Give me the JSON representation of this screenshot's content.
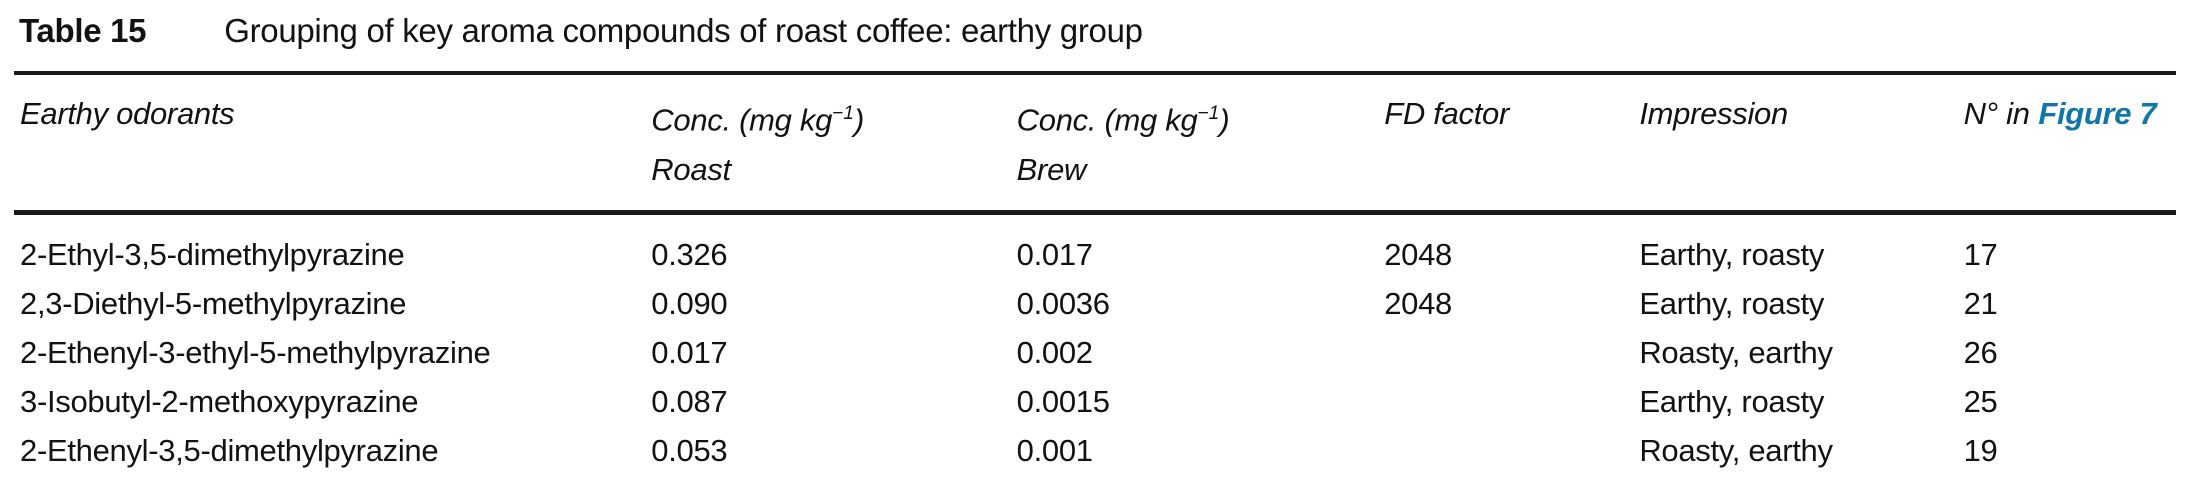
{
  "accent_color": "#0e76a8",
  "caption": {
    "label": "Table 15",
    "text": "Grouping of key aroma compounds of roast coffee: earthy group"
  },
  "header": {
    "odorants": "Earthy odorants",
    "conc_prefix": "Conc. (mg kg",
    "conc_sup": "−1",
    "conc_suffix": ")",
    "roast_sub": "Roast",
    "brew_sub": "Brew",
    "fd_factor": "FD factor",
    "impression": "Impression",
    "figure_col_prefix": "N° in",
    "figure_link": "Figure 7"
  },
  "rows": [
    {
      "odorant": "2-Ethyl-3,5-dimethylpyrazine",
      "conc_roast": "0.326",
      "conc_brew": "0.017",
      "fd_factor": "2048",
      "impression": "Earthy, roasty",
      "figure_no": "17"
    },
    {
      "odorant": "2,3-Diethyl-5-methylpyrazine",
      "conc_roast": "0.090",
      "conc_brew": "0.0036",
      "fd_factor": "2048",
      "impression": "Earthy, roasty",
      "figure_no": "21"
    },
    {
      "odorant": "2-Ethenyl-3-ethyl-5-methylpyrazine",
      "conc_roast": "0.017",
      "conc_brew": "0.002",
      "fd_factor": "",
      "impression": "Roasty, earthy",
      "figure_no": "26"
    },
    {
      "odorant": "3-Isobutyl-2-methoxypyrazine",
      "conc_roast": "0.087",
      "conc_brew": "0.0015",
      "fd_factor": "",
      "impression": "Earthy, roasty",
      "figure_no": "25"
    },
    {
      "odorant": "2-Ethenyl-3,5-dimethylpyrazine",
      "conc_roast": "0.053",
      "conc_brew": "0.001",
      "fd_factor": "",
      "impression": "Roasty, earthy",
      "figure_no": "19"
    }
  ]
}
